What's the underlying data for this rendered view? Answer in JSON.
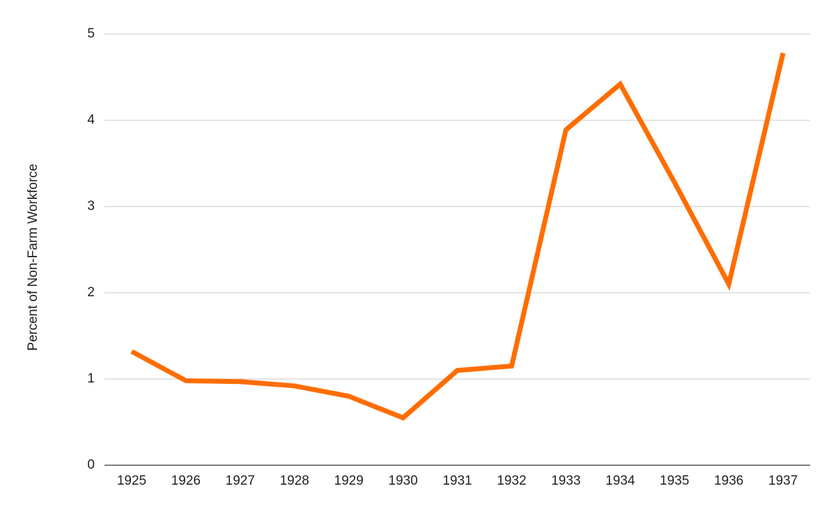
{
  "chart_data": {
    "type": "line",
    "y_label": "Percent of Non-Farm Workforce",
    "categories": [
      "1925",
      "1926",
      "1927",
      "1928",
      "1929",
      "1930",
      "1931",
      "1932",
      "1933",
      "1934",
      "1935",
      "1936",
      "1937"
    ],
    "values": [
      1.32,
      0.98,
      0.97,
      0.92,
      0.8,
      0.55,
      1.1,
      1.15,
      3.89,
      4.42,
      3.28,
      2.1,
      4.78
    ],
    "color": "#ff6d01",
    "ylim": [
      0,
      5
    ],
    "yticks": [
      0,
      1,
      2,
      3,
      4,
      5
    ],
    "grid": true
  }
}
